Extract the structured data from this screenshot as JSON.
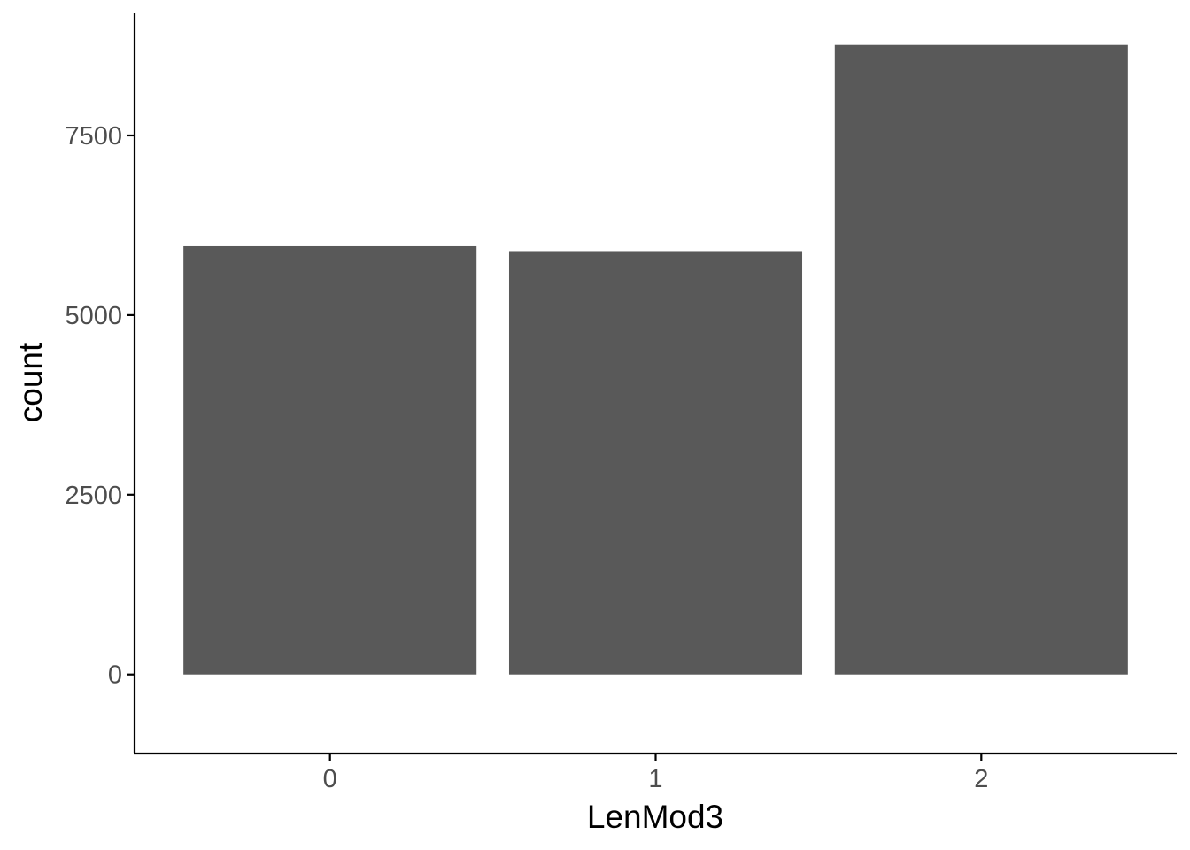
{
  "chart_data": {
    "type": "bar",
    "categories": [
      "0",
      "1",
      "2"
    ],
    "values": [
      5960,
      5880,
      8760
    ],
    "xlabel": "LenMod3",
    "ylabel": "count",
    "ylim": [
      -1100,
      9200
    ],
    "yticks": [
      0,
      2500,
      5000,
      7500
    ],
    "ytick_labels": [
      "0",
      "2500",
      "5000",
      "7500"
    ],
    "grid": false,
    "legend": "none",
    "bar_color": "#595959",
    "axis_color": "#000000",
    "tick_label_color": "#4d4d4d"
  }
}
